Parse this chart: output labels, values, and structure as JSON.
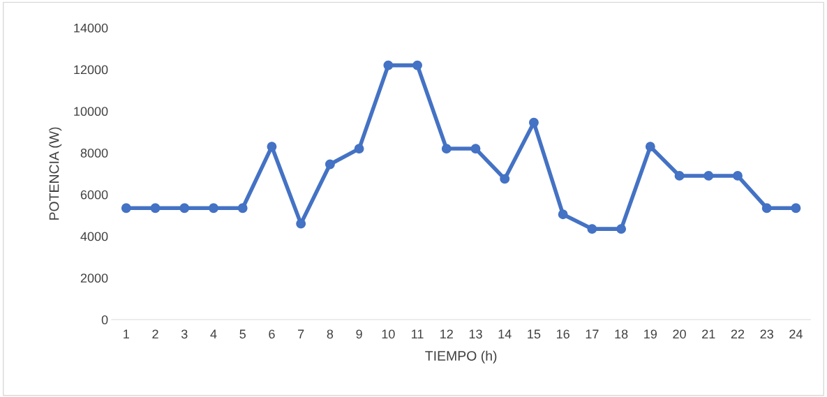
{
  "chart_data": {
    "type": "line",
    "xlabel": "TIEMPO (h)",
    "ylabel": "POTENCIA (W)",
    "categories": [
      "1",
      "2",
      "3",
      "4",
      "5",
      "6",
      "7",
      "8",
      "9",
      "10",
      "11",
      "12",
      "13",
      "14",
      "15",
      "16",
      "17",
      "18",
      "19",
      "20",
      "21",
      "22",
      "23",
      "24"
    ],
    "series": [
      {
        "color": "#4472c4",
        "values": [
          5350,
          5350,
          5350,
          5350,
          5350,
          8300,
          4600,
          7450,
          8200,
          12200,
          12200,
          8200,
          8200,
          6750,
          9450,
          5050,
          4350,
          4350,
          8300,
          6900,
          6900,
          6900,
          5350,
          5350
        ]
      }
    ],
    "ylim": [
      0,
      14000
    ],
    "yticks": [
      0,
      2000,
      4000,
      6000,
      8000,
      10000,
      12000,
      14000
    ],
    "grid": false,
    "legend": false,
    "marker": "circle",
    "line_style": "solid"
  }
}
